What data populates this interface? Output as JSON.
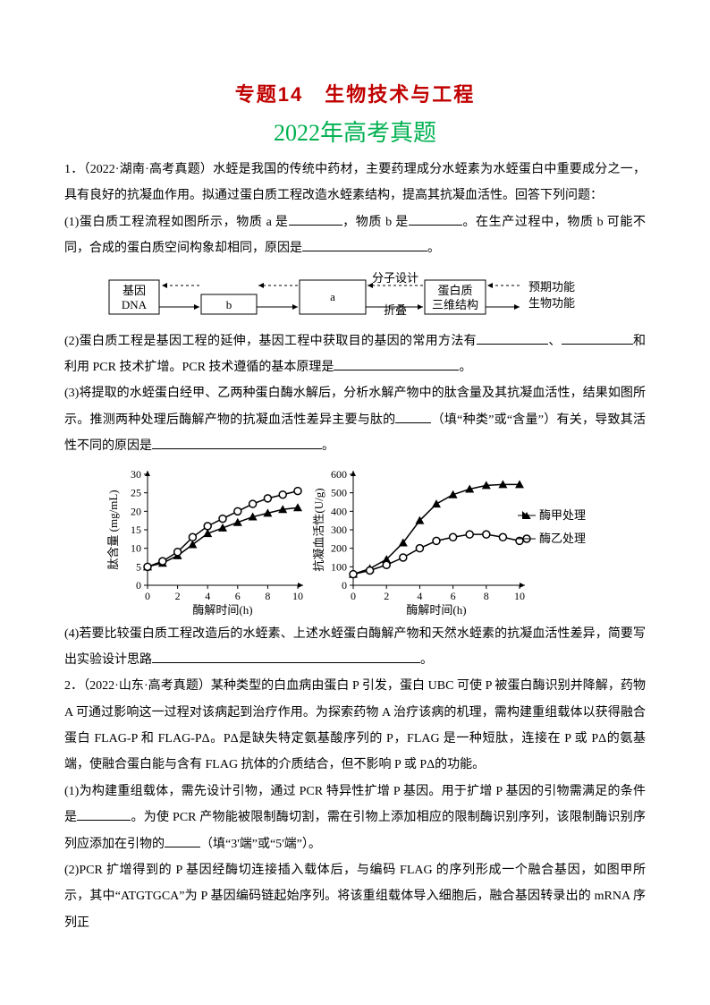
{
  "title": "专题14　生物技术与工程",
  "subtitle": "2022年高考真题",
  "q1": {
    "source": "1．（2022·湖南·高考真题）水蛭是我国的传统中药材，主要药理成分水蛭素为水蛭蛋白中重要成分之一，具有良好的抗凝血作用。拟通过蛋白质工程改造水蛭素结构，提高其抗凝血活性。回答下列问题：",
    "p1a": "(1)蛋白质工程流程如图所示，物质 a 是",
    "p1b": "，物质 b 是",
    "p1c": "。在生产过程中，物质 b 可能不同，合成的蛋白质空间构象却相同，原因是",
    "p1d": "。",
    "p2a": "(2)蛋白质工程是基因工程的延伸，基因工程中获取目的基因的常用方法有",
    "p2b": "、",
    "p2c": "和利用 PCR 技术扩增。PCR 技术遵循的基本原理是",
    "p2d": "。",
    "p3a": "(3)将提取的水蛭蛋白经甲、乙两种蛋白酶水解后，分析水解产物中的肽含量及其抗凝血活性，结果如图所示。推测两种处理后酶解产物的抗凝血活性差异主要与肽的",
    "p3b": "（填“种类”或“含量”）有关，导致其活性不同的原因是",
    "p3c": "。",
    "p4a": "(4)若要比较蛋白质工程改造后的水蛭素、上述水蛭蛋白酶解产物和天然水蛭素的抗凝血活性差异，简要写出实验设计思路",
    "p4b": "。"
  },
  "flowchart": {
    "gene": "基因",
    "dna": "DNA",
    "a": "a",
    "b": "b",
    "design": "分子设计",
    "fold": "折叠",
    "protein3d": "蛋白质",
    "protein3d2": "三维结构",
    "expected": "预期功能",
    "bio": "生物功能",
    "box_stroke": "#000000",
    "arrow_stroke": "#000000",
    "font_size": 13
  },
  "chart1": {
    "type": "line",
    "xlabel": "酶解时间(h)",
    "ylabel": "肽含量 (mg/mL)",
    "xlim": [
      0,
      10
    ],
    "ylim": [
      0,
      30
    ],
    "xticks": [
      0,
      2,
      4,
      6,
      8,
      10
    ],
    "yticks": [
      0,
      5,
      10,
      15,
      20,
      25,
      30
    ],
    "series_a_x": [
      0,
      1,
      2,
      3,
      4,
      5,
      6,
      7,
      8,
      9,
      10
    ],
    "series_a_y": [
      5,
      6,
      8,
      11,
      14,
      15.5,
      17,
      18.5,
      19.5,
      20.5,
      21
    ],
    "series_a_marker": "triangle",
    "series_a_color": "#000000",
    "series_b_x": [
      0,
      1,
      2,
      3,
      4,
      5,
      6,
      7,
      8,
      9,
      10
    ],
    "series_b_y": [
      5,
      6.5,
      9,
      13,
      16,
      18,
      20,
      22,
      23.5,
      24.5,
      25.5
    ],
    "series_b_marker": "circle",
    "series_b_color": "#000000",
    "label_fontsize": 13,
    "tick_fontsize": 12,
    "axis_color": "#000000",
    "background": "#ffffff"
  },
  "chart2": {
    "type": "line",
    "xlabel": "酶解时间(h)",
    "ylabel": "抗凝血活性(U/g)",
    "xlim": [
      0,
      10
    ],
    "ylim": [
      0,
      600
    ],
    "xticks": [
      0,
      2,
      4,
      6,
      8,
      10
    ],
    "yticks": [
      0,
      100,
      200,
      300,
      400,
      500,
      600
    ],
    "series_a_x": [
      0,
      1,
      2,
      3,
      4,
      5,
      6,
      7,
      8,
      9,
      10
    ],
    "series_a_y": [
      60,
      90,
      140,
      230,
      350,
      440,
      490,
      520,
      540,
      545,
      545
    ],
    "series_a_marker": "triangle",
    "series_a_color": "#000000",
    "series_b_x": [
      0,
      1,
      2,
      3,
      4,
      5,
      6,
      7,
      8,
      9,
      10
    ],
    "series_b_y": [
      60,
      80,
      110,
      150,
      200,
      240,
      260,
      275,
      275,
      260,
      240
    ],
    "series_b_marker": "circle",
    "series_b_color": "#000000",
    "legend_a": "酶甲处理",
    "legend_b": "酶乙处理",
    "label_fontsize": 13,
    "tick_fontsize": 12,
    "axis_color": "#000000",
    "background": "#ffffff"
  },
  "q2": {
    "source": "2．（2022·山东·高考真题）某种类型的白血病由蛋白 P 引发，蛋白 UBC 可使 P 被蛋白酶识别并降解，药物 A 可通过影响这一过程对该病起到治疗作用。为探索药物 A 治疗该病的机理，需构建重组载体以获得融合蛋白 FLAG-P 和 FLAG-PΔ。PΔ是缺失特定氨基酸序列的 P，FLAG 是一种短肽，连接在 P 或 PΔ的氨基端，使融合蛋白能与含有 FLAG 抗体的介质结合，但不影响 P 或 PΔ的功能。",
    "p1a": "(1)为构建重组载体，需先设计引物，通过 PCR 特异性扩增 P 基因。用于扩增 P 基因的引物需满足的条件是",
    "p1b": "。为使 PCR 产物能被限制酶切割，需在引物上添加相应的限制酶识别序列，该限制酶识别序列应添加在引物的",
    "p1c": "（填“3'端”或“5'端”）。",
    "p2": "(2)PCR 扩增得到的 P 基因经酶切连接插入载体后，与编码 FLAG 的序列形成一个融合基因，如图甲所示，其中“ATGTGCA”为 P 基因编码链起始序列。将该重组载体导入细胞后，融合基因转录出的 mRNA 序列正"
  }
}
